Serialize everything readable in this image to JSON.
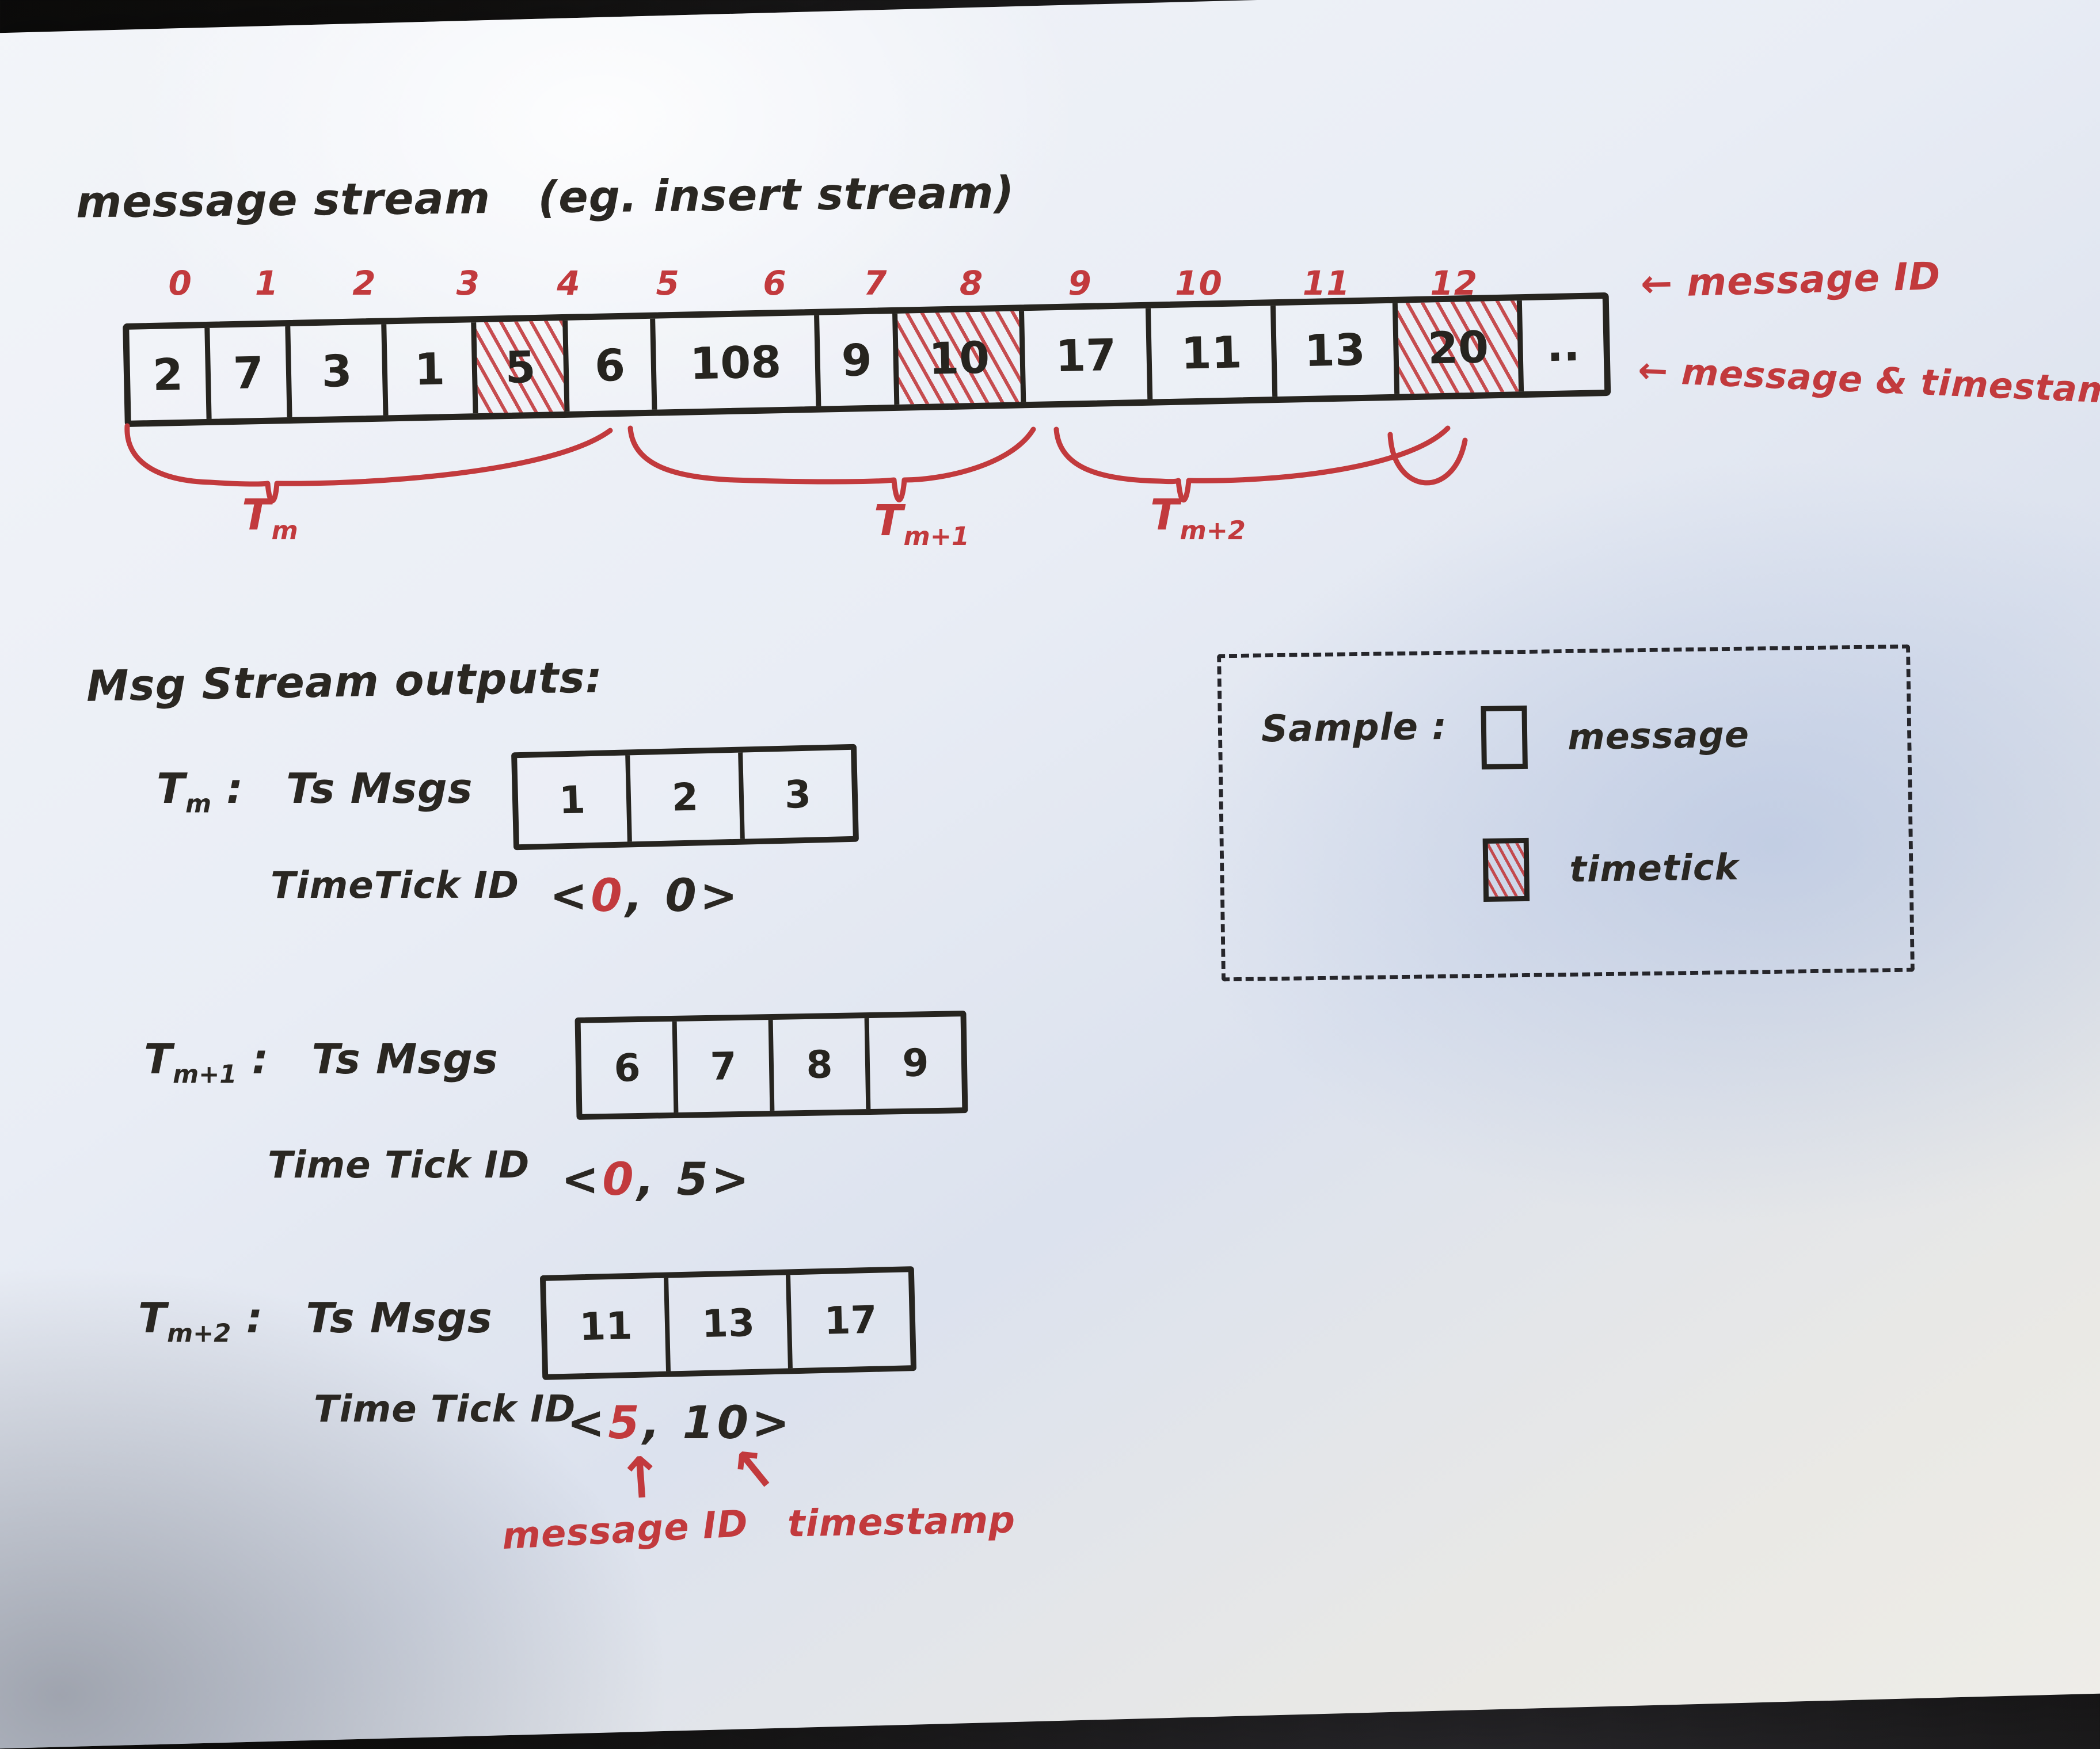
{
  "colors": {
    "ink": "#2a2722",
    "red": "#c23a3d"
  },
  "title": "message stream   (eg. insert stream)",
  "stream": {
    "indices": [
      {
        "v": "0",
        "w": 1
      },
      {
        "v": "1",
        "w": 1
      },
      {
        "v": "2",
        "w": 1.35
      },
      {
        "v": "3",
        "w": 1.2
      },
      {
        "v": "4",
        "w": 1.25
      },
      {
        "v": "5",
        "w": 1.15
      },
      {
        "v": "6",
        "w": 1.5
      },
      {
        "v": "7",
        "w": 0.95
      },
      {
        "v": "8",
        "w": 1.35
      },
      {
        "v": "9",
        "w": 1.35
      },
      {
        "v": "10",
        "w": 1.3
      },
      {
        "v": "11",
        "w": 1.25
      },
      {
        "v": "12",
        "w": 1.3
      }
    ],
    "cells": [
      {
        "v": "2",
        "w": 1,
        "hatched": false
      },
      {
        "v": "7",
        "w": 1,
        "hatched": false
      },
      {
        "v": "3",
        "w": 1.35,
        "hatched": false
      },
      {
        "v": "1",
        "w": 1.2,
        "hatched": false
      },
      {
        "v": "5",
        "w": 1.25,
        "hatched": true
      },
      {
        "v": "6",
        "w": 1.15,
        "hatched": false
      },
      {
        "v": "108",
        "w": 1.5,
        "hatched": false
      },
      {
        "v": "9",
        "w": 0.95,
        "hatched": false
      },
      {
        "v": "10",
        "w": 1.35,
        "hatched": true
      },
      {
        "v": "17",
        "w": 1.35,
        "hatched": false
      },
      {
        "v": "11",
        "w": 1.3,
        "hatched": false
      },
      {
        "v": "13",
        "w": 1.25,
        "hatched": false
      },
      {
        "v": "20",
        "w": 1.3,
        "hatched": true
      },
      {
        "v": "..",
        "w": 1.05,
        "hatched": false
      }
    ],
    "label_message_id": "← message ID",
    "label_message_ts": "← message & timestamp",
    "braces": [
      {
        "base": "T",
        "sub": "m"
      },
      {
        "base": "T",
        "sub": "m+1"
      },
      {
        "base": "T",
        "sub": "m+2"
      }
    ]
  },
  "outputs_heading": "Msg Stream outputs:",
  "outputs": [
    {
      "t_base": "T",
      "t_sub": "m",
      "colon": ":",
      "msgs_label": "Ts Msgs",
      "msgs": [
        "1",
        "2",
        "3"
      ],
      "tick_label": "TimeTick ID",
      "tick": {
        "open": "<",
        "first": "0",
        "comma": ",",
        "second": "0",
        "close": ">"
      }
    },
    {
      "t_base": "T",
      "t_sub": "m+1",
      "colon": ":",
      "msgs_label": "Ts Msgs",
      "msgs": [
        "6",
        "7",
        "8",
        "9"
      ],
      "tick_label": "Time Tick ID",
      "tick": {
        "open": "<",
        "first": "0",
        "comma": ",",
        "second": "5",
        "close": ">"
      }
    },
    {
      "t_base": "T",
      "t_sub": "m+2",
      "colon": ":",
      "msgs_label": "Ts Msgs",
      "msgs": [
        "11",
        "13",
        "17"
      ],
      "tick_label": "Time Tick ID",
      "tick": {
        "open": "<",
        "first": "5",
        "comma": ",",
        "second": "10",
        "close": ">"
      }
    }
  ],
  "legend": {
    "title": "Sample :",
    "items": [
      {
        "label": "message",
        "hatched": false
      },
      {
        "label": "timetick",
        "hatched": true
      }
    ]
  },
  "annotations": {
    "up_arrow": "↑",
    "upleft_arrow": "↖",
    "message_id_label": "message ID",
    "timestamp_label": "timestamp"
  }
}
